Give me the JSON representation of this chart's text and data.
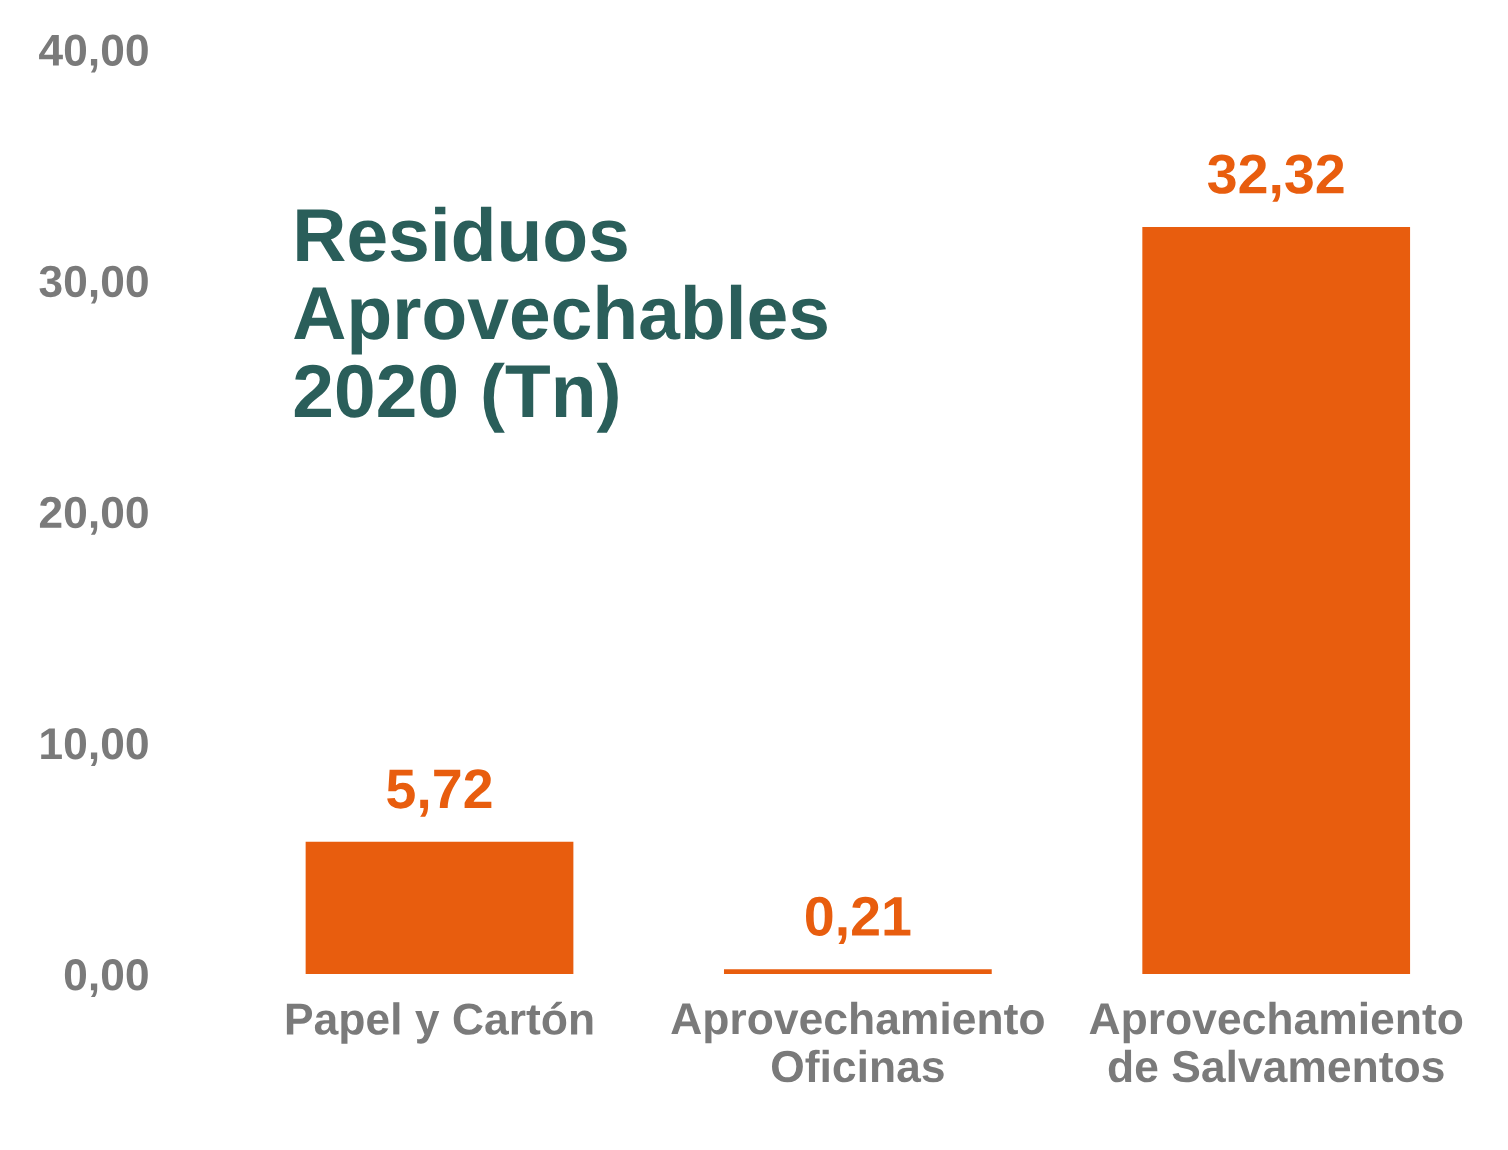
{
  "chart_data": {
    "type": "bar",
    "title": "Residuos\nAprovechables\n2020 (Tn)",
    "categories": [
      "Papel y Cartón",
      "Aprovechamiento\nOficinas",
      "Aprovechamiento\nde Salvamentos"
    ],
    "values": [
      5.72,
      0.21,
      32.32
    ],
    "value_labels": [
      "5,72",
      "0,21",
      "32,32"
    ],
    "color": "#e85d0e",
    "ylim": [
      0,
      40
    ],
    "yticks": [
      {
        "value": 0,
        "label": "0,00"
      },
      {
        "value": 10,
        "label": "10,00"
      },
      {
        "value": 20,
        "label": "20,00"
      },
      {
        "value": 30,
        "label": "30,00"
      },
      {
        "value": 40,
        "label": "40,00"
      }
    ],
    "grid": false,
    "legend": false
  }
}
